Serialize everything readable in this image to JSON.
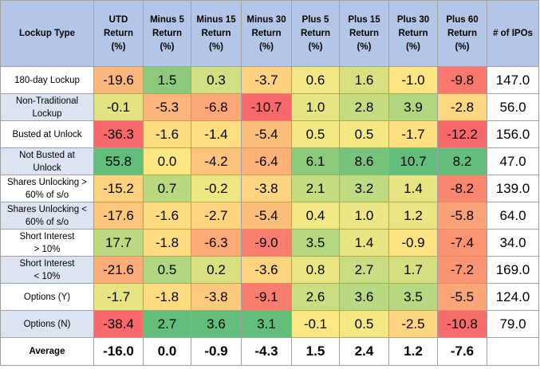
{
  "table": {
    "headers": [
      "Lockup Type",
      "UTD Return (%)",
      "Minus 5 Return (%)",
      "Minus 15 Return (%)",
      "Minus 30 Return (%)",
      "Plus 5 Return (%)",
      "Plus 15 Return (%)",
      "Plus 30 Return (%)",
      "Plus 60 Return (%)",
      "# of IPOs"
    ],
    "header_lines": [
      [
        "Lockup Type"
      ],
      [
        "UTD",
        "Return",
        "(%)"
      ],
      [
        "Minus 5",
        "Return",
        "(%)"
      ],
      [
        "Minus 15",
        "Return",
        "(%)"
      ],
      [
        "Minus 30",
        "Return",
        "(%)"
      ],
      [
        "Plus 5",
        "Return",
        "(%)"
      ],
      [
        "Plus 15",
        "Return",
        "(%)"
      ],
      [
        "Plus 30",
        "Return",
        "(%)"
      ],
      [
        "Plus 60",
        "Return",
        "(%)"
      ],
      [
        "# of IPOs"
      ]
    ],
    "rows": [
      {
        "label_lines": [
          "180-day Lockup"
        ],
        "values": [
          "-19.6",
          "1.5",
          "0.3",
          "-3.7",
          "0.6",
          "1.6",
          "-1.0",
          "-9.8"
        ],
        "count": "147.0",
        "colors": [
          "#f9b77c",
          "#8cc97c",
          "#d1df82",
          "#fdd17f",
          "#f1e784",
          "#d8e082",
          "#fee482",
          "#f8786d"
        ]
      },
      {
        "label_lines": [
          "Non-Traditional",
          "Lockup"
        ],
        "values": [
          "-0.1",
          "-5.3",
          "-6.8",
          "-10.7",
          "1.0",
          "2.8",
          "3.9",
          "-2.8"
        ],
        "count": "56.0",
        "colors": [
          "#e4e383",
          "#fcb57a",
          "#fba777",
          "#f8696b",
          "#e6e483",
          "#c6dc81",
          "#b2d680",
          "#fdd880"
        ]
      },
      {
        "label_lines": [
          "Busted at Unlock"
        ],
        "values": [
          "-36.3",
          "-1.6",
          "-1.4",
          "-5.4",
          "0.5",
          "0.5",
          "-1.7",
          "-12.2"
        ],
        "count": "156.0",
        "colors": [
          "#f8696b",
          "#fedd81",
          "#fede81",
          "#fcbf7b",
          "#f1e784",
          "#f3e884",
          "#fee081",
          "#f8696b"
        ]
      },
      {
        "label_lines": [
          "Not Busted at",
          "Unlock"
        ],
        "values": [
          "55.8",
          "0.0",
          "-4.2",
          "-6.4",
          "6.1",
          "8.6",
          "10.7",
          "8.2"
        ],
        "count": "47.0",
        "colors": [
          "#63be7b",
          "#fee783",
          "#fdc27c",
          "#fcb179",
          "#8cc97c",
          "#77c37c",
          "#63be7b",
          "#63be7b"
        ]
      },
      {
        "label_lines": [
          "Shares Unlocking >",
          "60% of s/o"
        ],
        "values": [
          "-15.2",
          "0.7",
          "-0.2",
          "-3.8",
          "2.1",
          "3.2",
          "1.4",
          "-8.2"
        ],
        "count": "139.0",
        "colors": [
          "#fcd17f",
          "#bad880",
          "#ede683",
          "#fdd47f",
          "#c6dc81",
          "#c0da81",
          "#e7e483",
          "#f9866f"
        ]
      },
      {
        "label_lines": [
          "Shares Unlocking <",
          "60% of s/o"
        ],
        "values": [
          "-17.6",
          "-1.6",
          "-2.7",
          "-5.4",
          "0.4",
          "1.0",
          "1.2",
          "-5.8"
        ],
        "count": "64.0",
        "colors": [
          "#fbc77d",
          "#fedd81",
          "#fed480",
          "#fcbf7b",
          "#f1e784",
          "#ebe583",
          "#e9e583",
          "#fba376"
        ]
      },
      {
        "label_lines": [
          "Short Interest",
          "> 10%"
        ],
        "values": [
          "17.7",
          "-1.8",
          "-6.3",
          "-9.0",
          "3.5",
          "1.4",
          "-0.9",
          "-7.4"
        ],
        "count": "34.0",
        "colors": [
          "#bcd981",
          "#fedc81",
          "#fbaa78",
          "#f97e6f",
          "#b5d780",
          "#e7e483",
          "#fee382",
          "#fa9372"
        ]
      },
      {
        "label_lines": [
          "Short Interest",
          "< 10%"
        ],
        "values": [
          "-21.6",
          "0.5",
          "0.2",
          "-3.6",
          "0.8",
          "2.7",
          "1.7",
          "-7.2"
        ],
        "count": "169.0",
        "colors": [
          "#faad78",
          "#b1d580",
          "#d8e082",
          "#fdd47f",
          "#eae583",
          "#c8dc81",
          "#d5df82",
          "#f99572"
        ]
      },
      {
        "label_lines": [
          "Options (Y)"
        ],
        "values": [
          "-1.7",
          "-1.8",
          "-3.8",
          "-9.1",
          "2.6",
          "3.6",
          "3.5",
          "-5.5"
        ],
        "count": "124.0",
        "colors": [
          "#e6e483",
          "#fedc81",
          "#fdca7d",
          "#f97d6e",
          "#cadd82",
          "#b8d881",
          "#b7d780",
          "#fba677"
        ]
      },
      {
        "label_lines": [
          "Options (N)"
        ],
        "values": [
          "-38.4",
          "2.7",
          "3.6",
          "3.1",
          "-0.1",
          "0.5",
          "-2.5",
          "-10.8"
        ],
        "count": "79.0",
        "colors": [
          "#f8696b",
          "#63be7b",
          "#63be7b",
          "#63be7b",
          "#fee883",
          "#f3e884",
          "#fed580",
          "#f86c6b"
        ]
      }
    ],
    "average": {
      "label": "Average",
      "values": [
        "-16.0",
        "0.0",
        "-0.9",
        "-4.3",
        "1.5",
        "2.4",
        "1.2",
        "-7.6"
      ],
      "count": ""
    }
  }
}
